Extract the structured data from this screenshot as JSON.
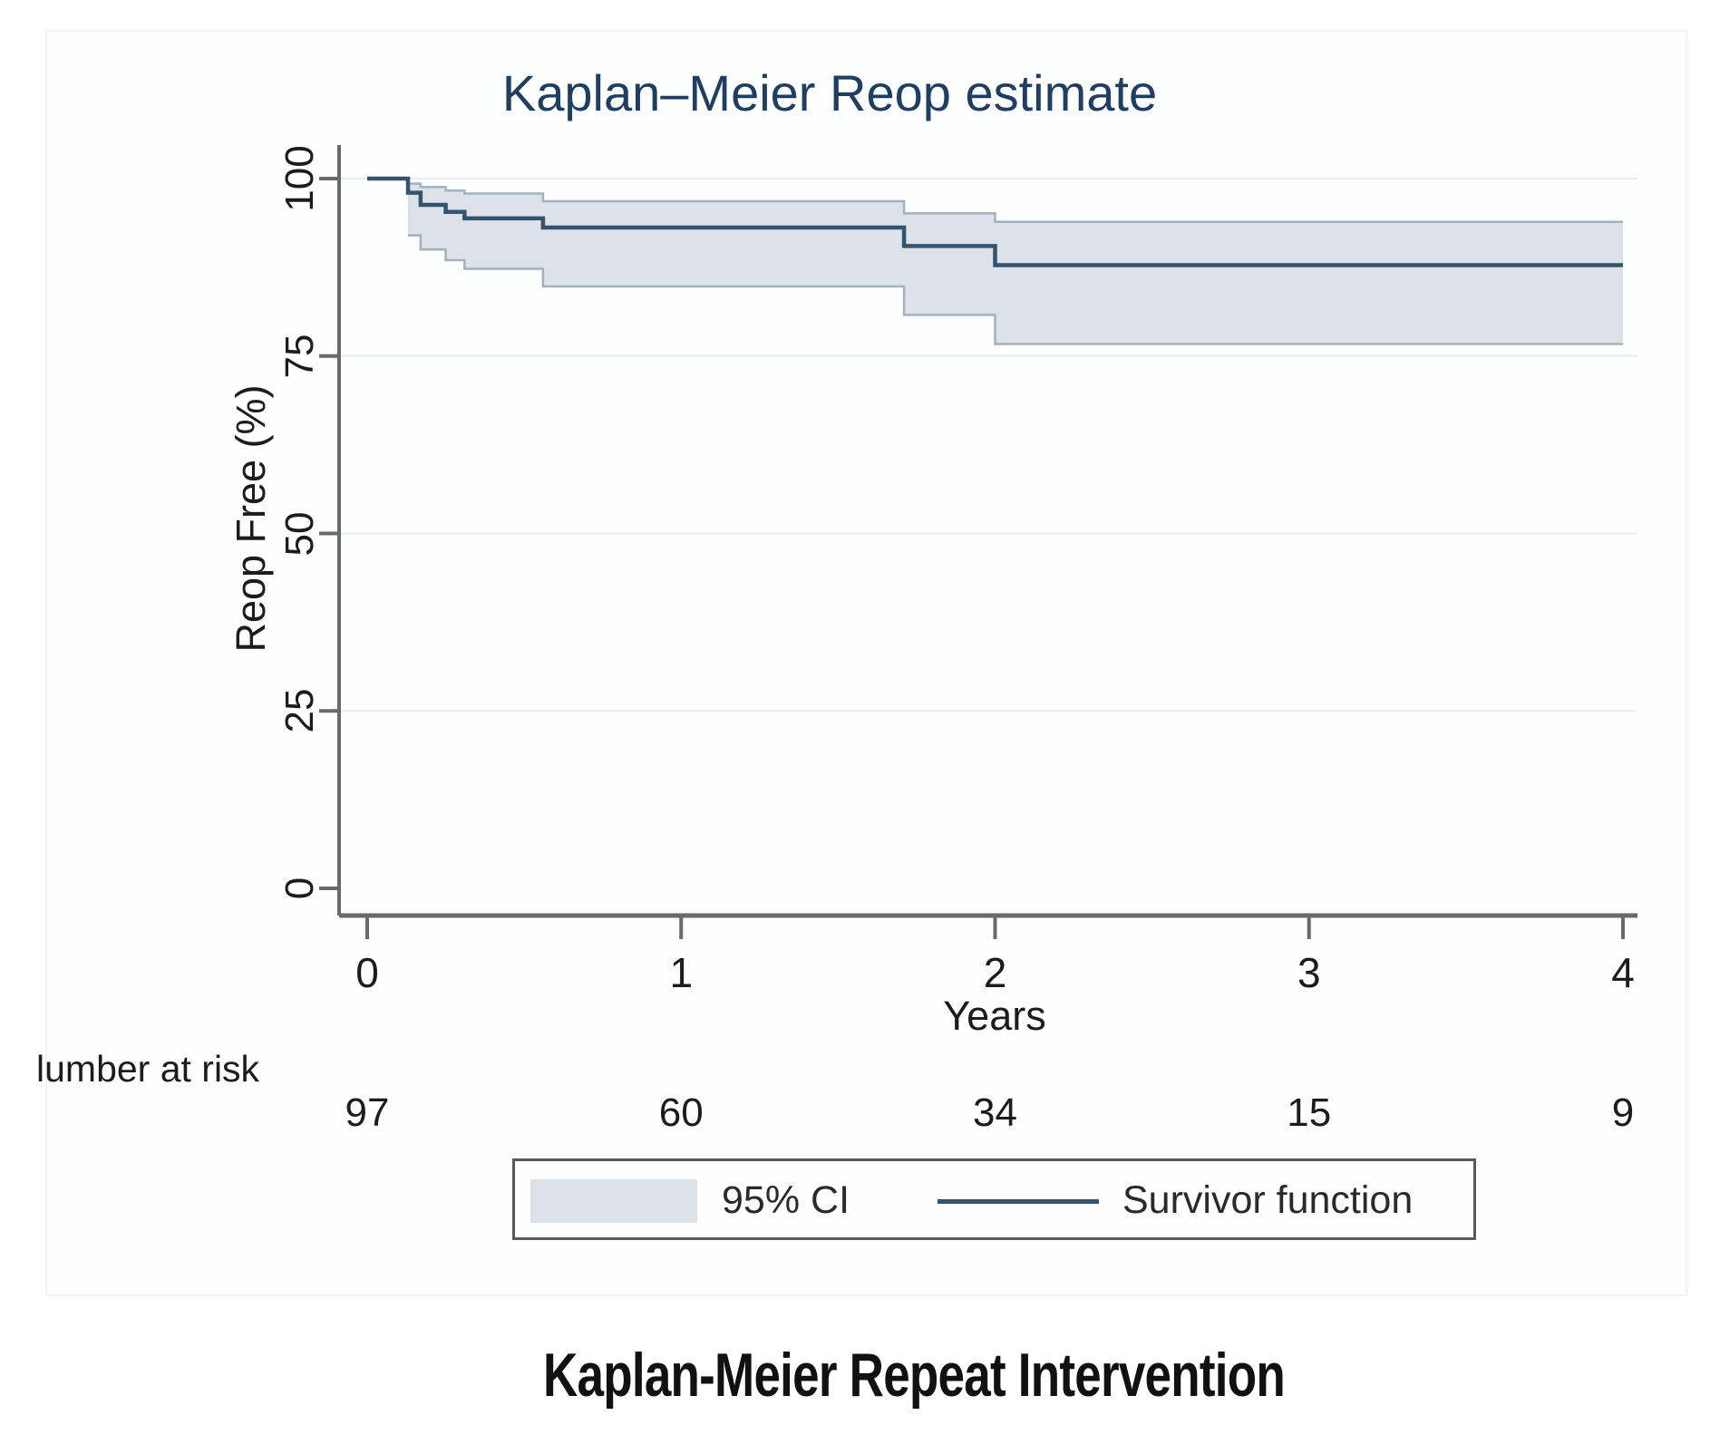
{
  "figure": {
    "caption": "Kaplan-Meier Repeat Intervention"
  },
  "chart_data": {
    "type": "line",
    "subtype": "kaplan-meier-step",
    "title": "Kaplan–Meier Reop estimate",
    "xlabel": "Years",
    "ylabel": "Reop Free (%)",
    "xlim": [
      0,
      4
    ],
    "ylim": [
      0,
      100
    ],
    "x_ticks": [
      "0",
      "1",
      "2",
      "3",
      "4"
    ],
    "y_ticks": [
      "0",
      "25",
      "50",
      "75",
      "100"
    ],
    "grid": "horizontal-light",
    "event_times": [
      0.13,
      0.17,
      0.25,
      0.31,
      0.56,
      1.71,
      2.0
    ],
    "end_time": 4,
    "series": [
      {
        "name": "Survivor function",
        "steps": [
          100,
          98,
          96.3,
          95.3,
          94.4,
          93.1,
          90.5,
          87.8
        ]
      },
      {
        "name": "95% CI upper",
        "steps": [
          99.3,
          98.8,
          98.3,
          97.9,
          96.8,
          95.1,
          93.9
        ]
      },
      {
        "name": "95% CI lower",
        "steps": [
          92.0,
          90.0,
          88.5,
          87.3,
          84.8,
          80.8,
          76.7
        ]
      }
    ],
    "number_at_risk": {
      "label": "lumber at risk",
      "times": [
        0,
        1,
        2,
        3,
        4
      ],
      "values": [
        "97",
        "60",
        "34",
        "15",
        "9"
      ]
    },
    "legend": {
      "position": "bottom-center-boxed",
      "ci_label": "95% CI",
      "line_label": "Survivor function"
    },
    "colors": {
      "ci_band": "#dde2e9",
      "ci_edge": "#a2b1c2",
      "survivor_line": "#33536f",
      "title": "#203d62",
      "axis": "#6a6a6a",
      "gridline": "#e9eef2",
      "text": "#1c1c1c"
    }
  }
}
